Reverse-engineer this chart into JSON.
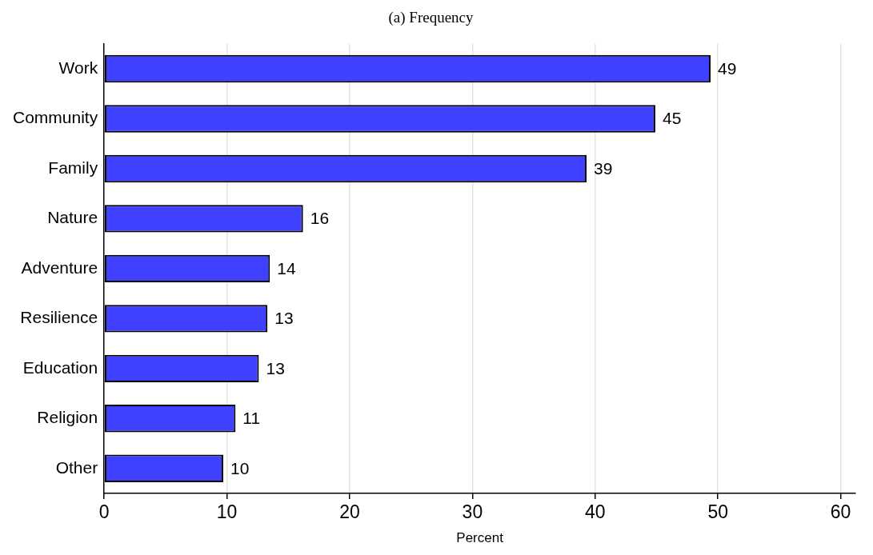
{
  "chart_data": {
    "type": "bar",
    "orientation": "horizontal",
    "title": "(a) Frequency",
    "xlabel": "Percent",
    "categories": [
      "Work",
      "Community",
      "Family",
      "Nature",
      "Adventure",
      "Resilience",
      "Education",
      "Religion",
      "Other"
    ],
    "values": [
      49.4,
      44.9,
      39.3,
      16.2,
      13.5,
      13.3,
      12.6,
      10.7,
      9.7
    ],
    "value_labels": [
      "49",
      "45",
      "39",
      "16",
      "14",
      "13",
      "13",
      "11",
      "10"
    ],
    "color": "#4040ff",
    "xlim": [
      0,
      61.2
    ],
    "xticks": [
      0,
      10,
      20,
      30,
      40,
      50,
      60
    ],
    "grid": "x",
    "legend": false
  }
}
